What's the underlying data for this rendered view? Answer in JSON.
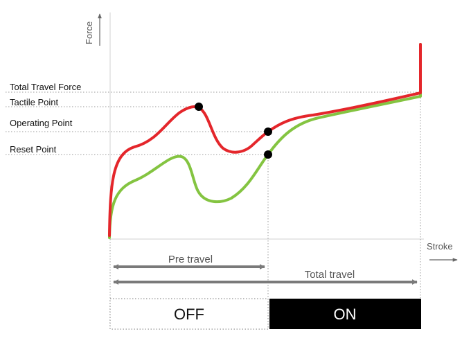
{
  "axes": {
    "y_label": "Force",
    "x_label": "Stroke"
  },
  "levels": {
    "total_travel_force": "Total Travel Force",
    "tactile_point": "Tactile Point",
    "operating_point": "Operating Point",
    "reset_point": "Reset Point"
  },
  "travel": {
    "pre_travel": "Pre travel",
    "total_travel": "Total travel"
  },
  "states": {
    "off": "OFF",
    "on": "ON"
  },
  "colors": {
    "press_curve": "#e4262b",
    "release_curve": "#84c441",
    "guide_lines": "#9a9a9a",
    "arrows": "#7a7a7a",
    "on_fill": "#000000"
  }
}
